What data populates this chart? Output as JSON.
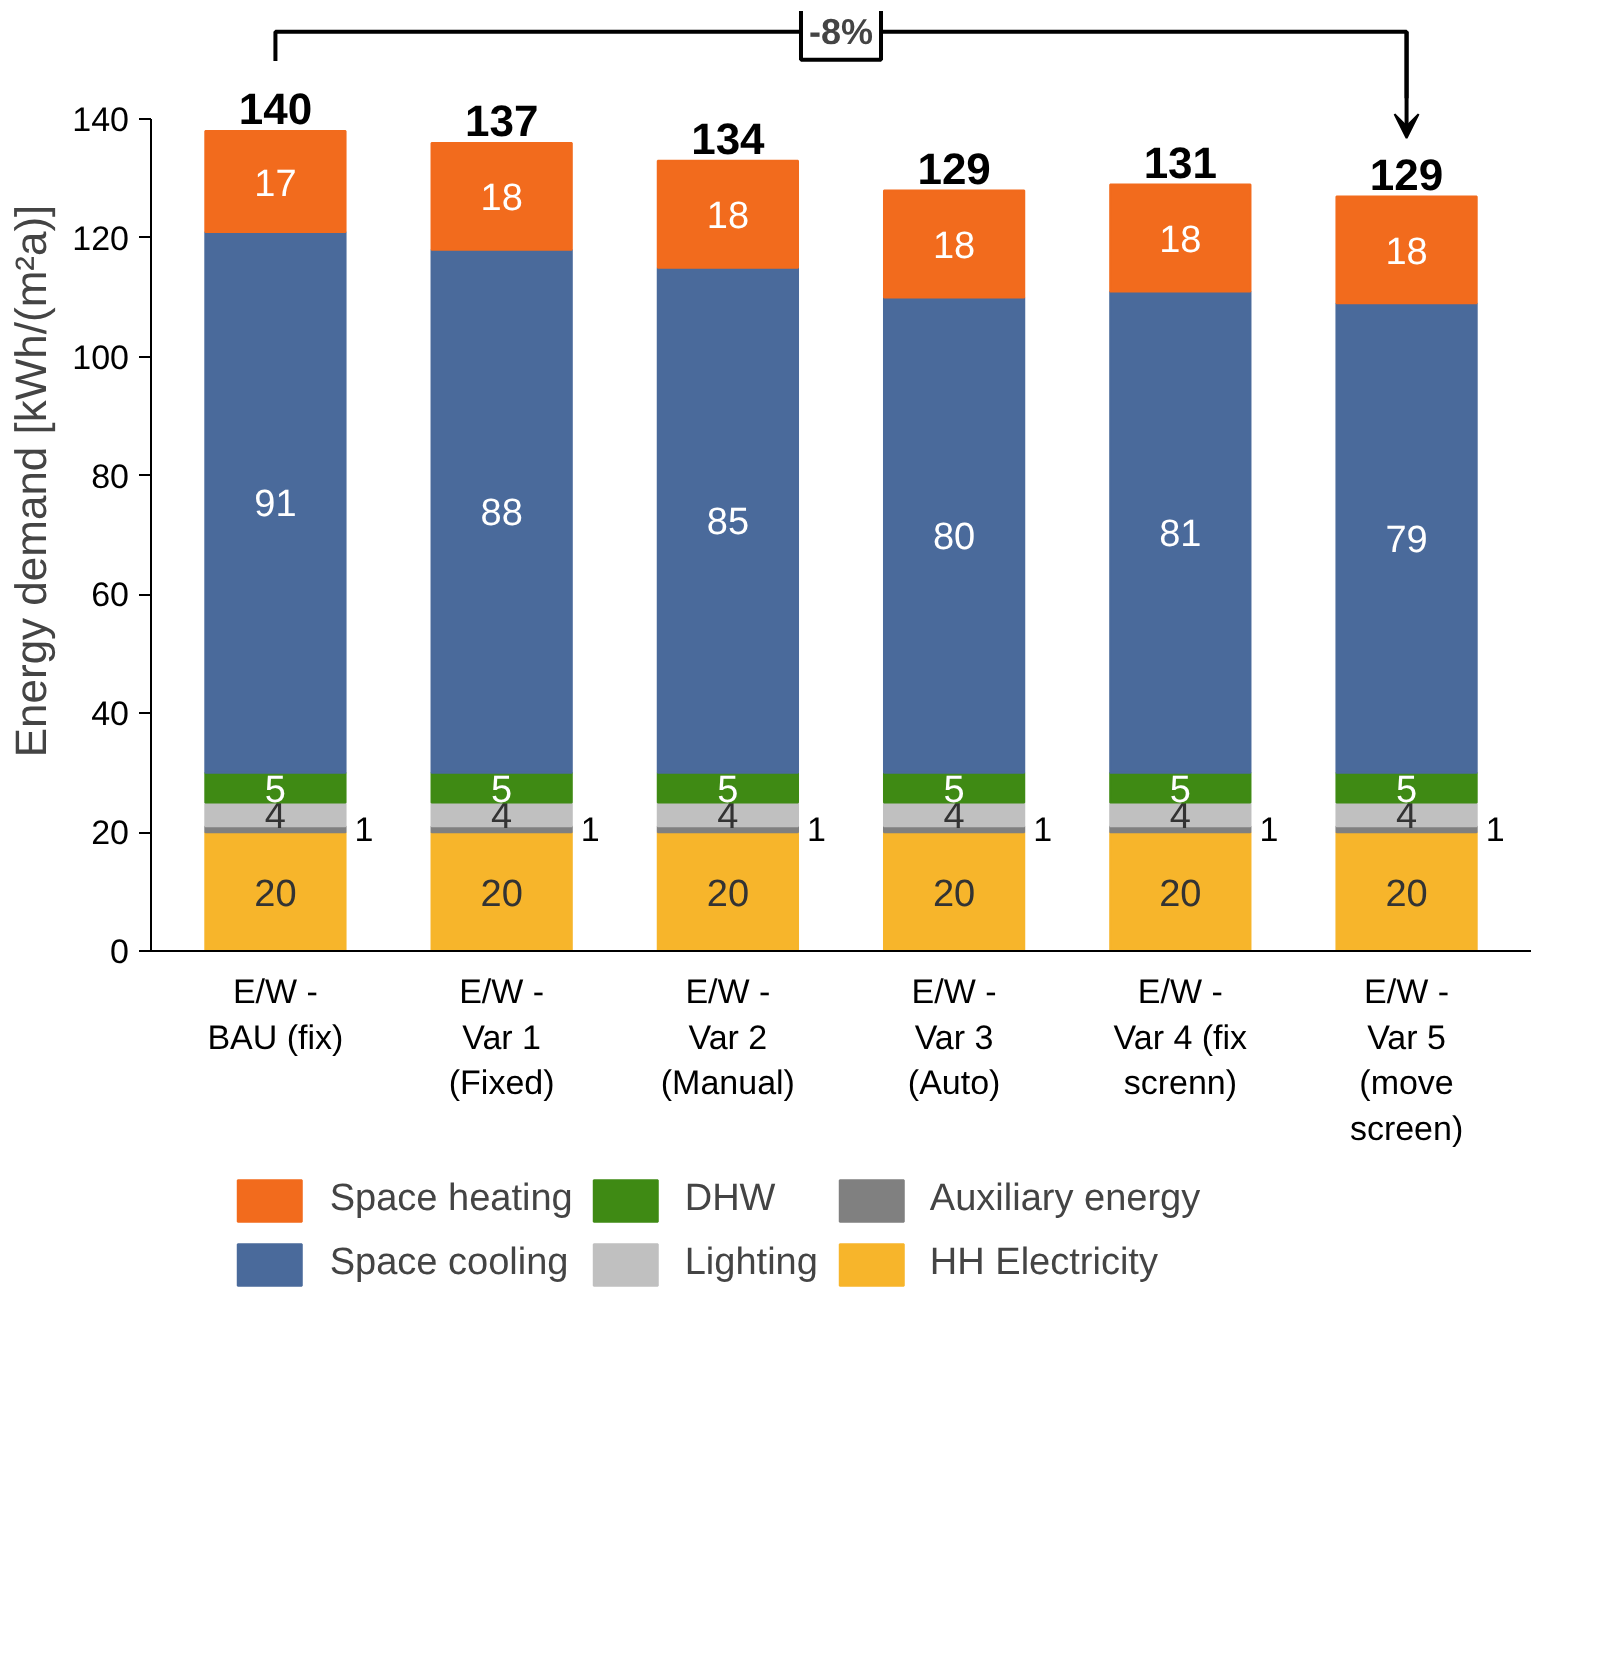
{
  "chart_data": {
    "type": "bar",
    "stacked": true,
    "ylabel": "Energy demand [kWh/(m²a)]",
    "categories": [
      "E/W -\nBAU (fix)",
      "E/W -\nVar 1\n(Fixed)",
      "E/W -\nVar 2\n(Manual)",
      "E/W -\nVar 3\n(Auto)",
      "E/W -\nVar 4 (fix\nscrenn)",
      "E/W -\nVar 5\n(move\nscreen)"
    ],
    "series": [
      {
        "name": "HH Electricity",
        "color": "#f7b52b",
        "values": [
          20,
          20,
          20,
          20,
          20,
          20
        ]
      },
      {
        "name": "Auxiliary energy",
        "color": "#808080",
        "values": [
          1,
          1,
          1,
          1,
          1,
          1
        ]
      },
      {
        "name": "Lighting",
        "color": "#c0c0c0",
        "values": [
          4,
          4,
          4,
          4,
          4,
          4
        ]
      },
      {
        "name": "DHW",
        "color": "#3f8a14",
        "values": [
          5,
          5,
          5,
          5,
          5,
          5
        ]
      },
      {
        "name": "Space cooling",
        "color": "#4a6a9b",
        "values": [
          91,
          88,
          85,
          80,
          81,
          79
        ]
      },
      {
        "name": "Space heating",
        "color": "#f26b1d",
        "values": [
          17,
          18,
          18,
          18,
          18,
          18
        ]
      }
    ],
    "data_labels": true,
    "totals": [
      "140",
      "137",
      "134",
      "129",
      "131",
      "129"
    ],
    "annotations": [
      "-8%"
    ],
    "ylim": [
      0,
      140
    ],
    "yticks": [
      0,
      20,
      40,
      60,
      80,
      100,
      120,
      140
    ],
    "grid": false,
    "legend": "bottom"
  }
}
